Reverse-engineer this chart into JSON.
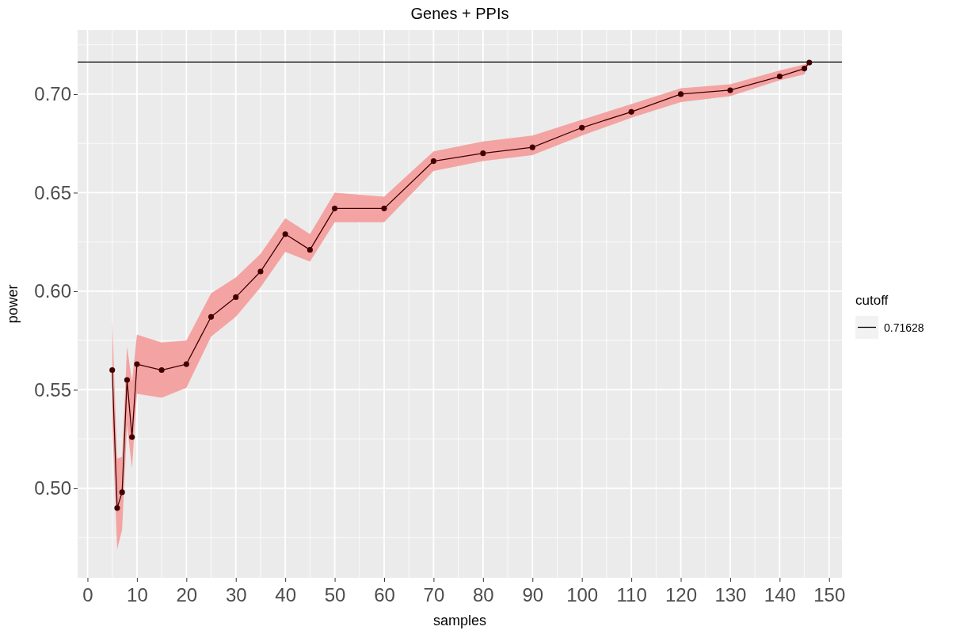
{
  "chart_data": {
    "type": "line",
    "title": "Genes + PPIs",
    "xlabel": "samples",
    "ylabel": "power",
    "legend_title": "cutoff",
    "x": [
      5,
      6,
      7,
      8,
      9,
      10,
      15,
      20,
      25,
      30,
      35,
      40,
      45,
      50,
      60,
      70,
      80,
      90,
      100,
      110,
      120,
      130,
      140,
      145,
      146
    ],
    "series": [
      {
        "color": "#400000",
        "values": [
          0.56,
          0.49,
          0.498,
          0.555,
          0.526,
          0.563,
          0.56,
          0.563,
          0.587,
          0.597,
          0.61,
          0.629,
          0.621,
          0.642,
          0.642,
          0.666,
          0.67,
          0.673,
          0.683,
          0.691,
          0.7,
          0.702,
          0.709,
          0.713,
          0.716
        ],
        "lower": [
          0.534,
          0.469,
          0.479,
          0.532,
          0.51,
          0.548,
          0.546,
          0.551,
          0.577,
          0.587,
          0.602,
          0.62,
          0.615,
          0.635,
          0.635,
          0.661,
          0.666,
          0.669,
          0.679,
          0.688,
          0.696,
          0.699,
          0.707,
          0.71,
          0.716
        ],
        "upper": [
          0.585,
          0.515,
          0.516,
          0.572,
          0.554,
          0.578,
          0.574,
          0.575,
          0.599,
          0.607,
          0.619,
          0.637,
          0.629,
          0.65,
          0.648,
          0.671,
          0.676,
          0.679,
          0.687,
          0.695,
          0.703,
          0.705,
          0.712,
          0.715,
          0.716
        ]
      }
    ],
    "ref_lines": [
      {
        "axis": "y",
        "value": 0.71628,
        "label": "0.71628",
        "color": "#000000",
        "line_style": "solid"
      }
    ],
    "xlim": [
      -2,
      152.6
    ],
    "ylim": [
      0.4546,
      0.7325
    ],
    "xticks": [
      0,
      10,
      20,
      30,
      40,
      50,
      60,
      70,
      80,
      90,
      100,
      110,
      120,
      130,
      140,
      150
    ],
    "yticks": [
      {
        "value": 0.5,
        "label": "0.50"
      },
      {
        "value": 0.55,
        "label": "0.55"
      },
      {
        "value": 0.6,
        "label": "0.60"
      },
      {
        "value": 0.65,
        "label": "0.65"
      },
      {
        "value": 0.7,
        "label": "0.70"
      }
    ],
    "grid": true,
    "legend": "right",
    "marker": "circle",
    "line_style": "solid"
  }
}
